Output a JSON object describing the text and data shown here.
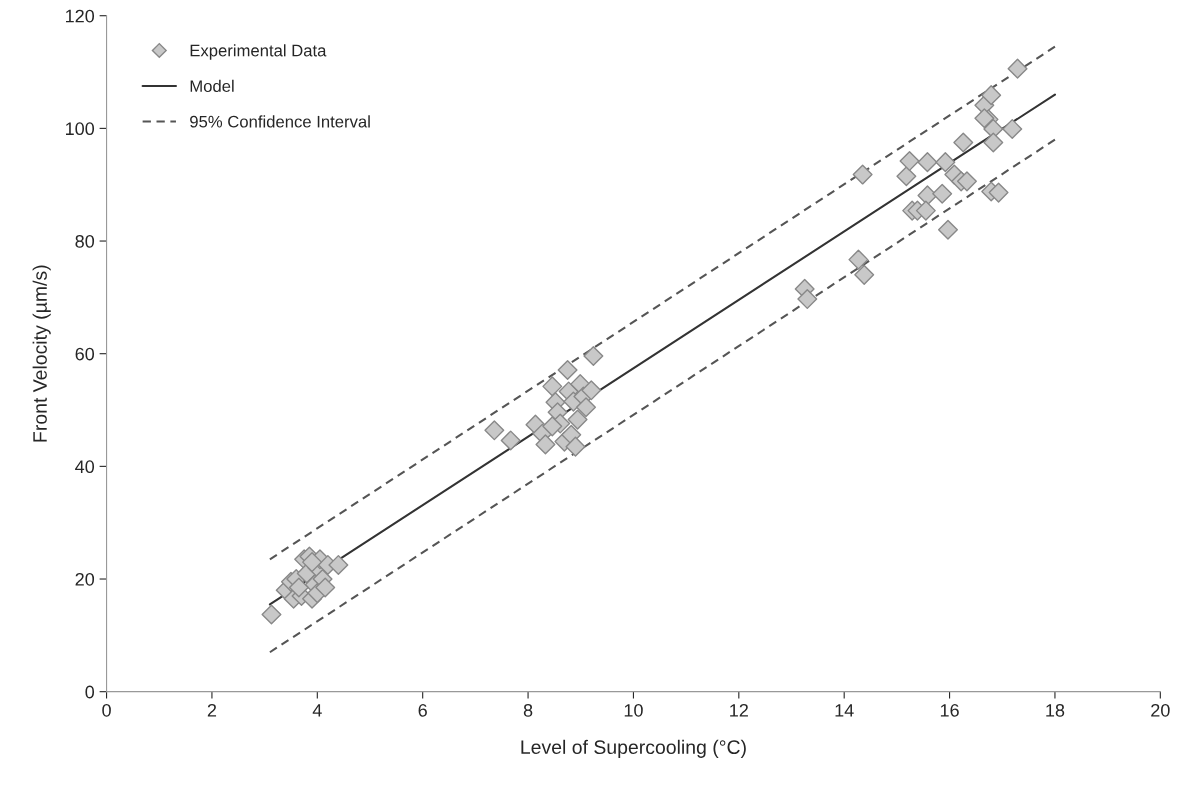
{
  "chart_data": {
    "type": "scatter",
    "xlabel": "Level of Supercooling (°C)",
    "ylabel": "Front Velocity (µm/s)",
    "xlim": [
      0,
      20
    ],
    "ylim": [
      0,
      120
    ],
    "xticks": [
      0,
      2,
      4,
      6,
      8,
      10,
      12,
      14,
      16,
      18,
      20
    ],
    "yticks": [
      0,
      20,
      40,
      60,
      80,
      100,
      120
    ],
    "grid": false,
    "legend": "top left",
    "series": [
      {
        "name": "Experimental Data",
        "marker": "diamond",
        "color": "#c8c8c8",
        "x": [
          3.13,
          3.4,
          3.5,
          3.55,
          3.6,
          3.7,
          3.75,
          3.8,
          3.85,
          3.9,
          3.95,
          4.0,
          4.0,
          4.05,
          4.1,
          4.15,
          4.2,
          4.4,
          3.65,
          3.9,
          7.36,
          7.67,
          8.14,
          8.27,
          8.33,
          8.46,
          8.52,
          8.56,
          8.61,
          8.69,
          8.75,
          8.77,
          8.82,
          8.86,
          8.94,
          8.99,
          9.05,
          9.1,
          9.2,
          9.24,
          8.46,
          8.9,
          13.25,
          13.3,
          14.27,
          14.35,
          14.38,
          15.18,
          15.24,
          15.29,
          15.39,
          15.58,
          15.58,
          15.55,
          15.86,
          15.92,
          15.97,
          16.09,
          16.22,
          16.26,
          16.33,
          16.66,
          16.74,
          16.79,
          16.83,
          16.83,
          16.79,
          16.93,
          17.19,
          17.29,
          16.66
        ],
        "values": [
          13.7,
          18,
          19.5,
          16.5,
          20,
          17,
          23.5,
          21,
          24,
          16.5,
          19,
          22,
          17.5,
          23.5,
          20,
          18.5,
          22.5,
          22.5,
          18.5,
          23,
          46.4,
          44.6,
          47.4,
          45.8,
          43.9,
          54.2,
          51.4,
          49.6,
          47.6,
          44.4,
          57.1,
          53.3,
          45.6,
          51.5,
          48.3,
          54.6,
          52.4,
          50.5,
          53.5,
          59.6,
          47.1,
          43.5,
          71.5,
          69.7,
          76.7,
          91.8,
          74.0,
          91.5,
          94.2,
          85.4,
          85.4,
          94.0,
          88.1,
          85.4,
          88.4,
          94.0,
          82.0,
          91.8,
          90.6,
          97.5,
          90.6,
          104.1,
          101.6,
          105.9,
          99.9,
          97.5,
          88.8,
          88.6,
          99.9,
          110.6,
          101.8
        ]
      },
      {
        "name": "Model",
        "type": "line",
        "line_style": "solid",
        "color": "#333333",
        "x": [
          3.1,
          18
        ],
        "values": [
          15.5,
          106
        ]
      },
      {
        "name": "95% Confidence Interval",
        "type": "line",
        "line_style": "dashed",
        "color": "#555555",
        "x": [
          3.1,
          18
        ],
        "values": [
          23.5,
          114.5
        ]
      },
      {
        "type": "line",
        "line_style": "dashed",
        "color": "#555555",
        "x": [
          3.1,
          18
        ],
        "values": [
          7,
          98
        ]
      }
    ]
  }
}
